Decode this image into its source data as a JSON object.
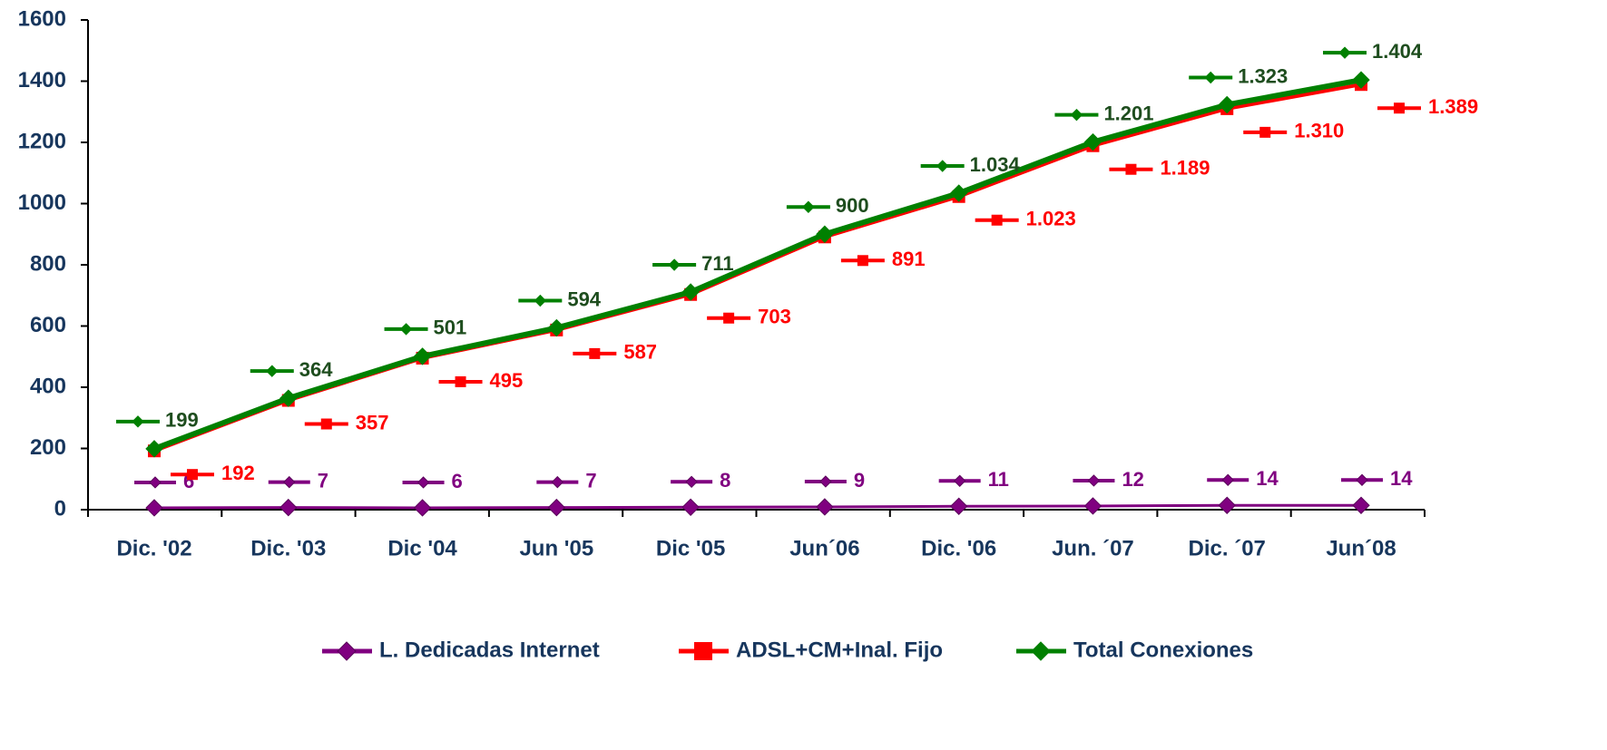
{
  "chart_data": {
    "type": "line",
    "categories": [
      "Dic. '02",
      "Dic. '03",
      "Dic '04",
      "Jun '05",
      "Dic '05",
      "Jun´06",
      "Dic. '06",
      "Jun. ´07",
      "Dic. ´07",
      "Jun´08"
    ],
    "series": [
      {
        "name": "L. Dedicadas Internet",
        "color": "#800080",
        "marker": "diamond",
        "values": [
          6,
          7,
          6,
          7,
          8,
          9,
          11,
          12,
          14,
          14
        ]
      },
      {
        "name": "ADSL+CM+Inal. Fijo",
        "color": "#ff0000",
        "marker": "square",
        "values": [
          192,
          357,
          495,
          587,
          703,
          891,
          1023,
          1189,
          1310,
          1389
        ],
        "value_labels": [
          "192",
          "357",
          "495",
          "587",
          "703",
          "891",
          "1.023",
          "1.189",
          "1.310",
          "1.389"
        ]
      },
      {
        "name": "Total Conexiones",
        "color": "#008000",
        "marker": "diamond",
        "values": [
          199,
          364,
          501,
          594,
          711,
          900,
          1034,
          1201,
          1323,
          1404
        ],
        "value_labels": [
          "199",
          "364",
          "501",
          "594",
          "711",
          "900",
          "1.034",
          "1.201",
          "1.323",
          "1.404"
        ]
      }
    ],
    "ylim": [
      0,
      1600
    ],
    "yticks": [
      0,
      200,
      400,
      600,
      800,
      1000,
      1200,
      1400,
      1600
    ],
    "grid": false,
    "legend": "bottom"
  }
}
